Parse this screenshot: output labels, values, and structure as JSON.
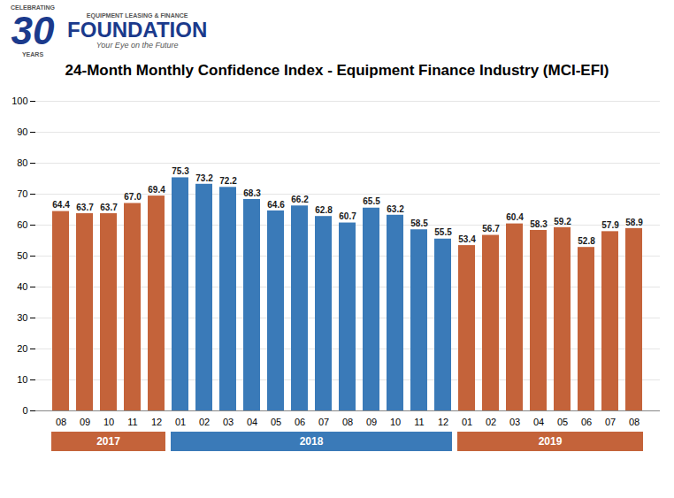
{
  "chart_data": {
    "type": "bar",
    "title": "24-Month Monthly Confidence Index - Equipment Finance Industry (MCI-EFI)",
    "categories": [
      "08",
      "09",
      "10",
      "11",
      "12",
      "01",
      "02",
      "03",
      "04",
      "05",
      "06",
      "07",
      "08",
      "09",
      "10",
      "11",
      "12",
      "01",
      "02",
      "03",
      "04",
      "05",
      "06",
      "07",
      "08"
    ],
    "values": [
      64.4,
      63.7,
      63.7,
      67.0,
      69.4,
      75.3,
      73.2,
      72.2,
      68.3,
      64.6,
      66.2,
      62.8,
      60.7,
      65.5,
      63.2,
      58.5,
      55.5,
      53.4,
      56.7,
      60.4,
      58.3,
      59.2,
      52.8,
      57.9,
      58.9
    ],
    "value_labels": [
      "64.4",
      "63.7",
      "63.7",
      "67.0",
      "69.4",
      "75.3",
      "73.2",
      "72.2",
      "68.3",
      "64.6",
      "66.2",
      "62.8",
      "60.7",
      "65.5",
      "63.2",
      "58.5",
      "55.5",
      "53.4",
      "56.7",
      "60.4",
      "58.3",
      "59.2",
      "52.8",
      "57.9",
      "58.9"
    ],
    "colors": [
      "#C4633A",
      "#C4633A",
      "#C4633A",
      "#C4633A",
      "#C4633A",
      "#3A7AB8",
      "#3A7AB8",
      "#3A7AB8",
      "#3A7AB8",
      "#3A7AB8",
      "#3A7AB8",
      "#3A7AB8",
      "#3A7AB8",
      "#3A7AB8",
      "#3A7AB8",
      "#3A7AB8",
      "#3A7AB8",
      "#C4633A",
      "#C4633A",
      "#C4633A",
      "#C4633A",
      "#C4633A",
      "#C4633A",
      "#C4633A",
      "#C4633A"
    ],
    "data_labels": true,
    "ylim": [
      0,
      100
    ],
    "yticks": [
      0,
      10,
      20,
      30,
      40,
      50,
      60,
      70,
      80,
      90,
      100
    ],
    "grid": true,
    "annotations": [
      {
        "text": "2017",
        "start": 0,
        "end": 4,
        "color": "#C4633A"
      },
      {
        "text": "2018",
        "start": 5,
        "end": 16,
        "color": "#3A7AB8"
      },
      {
        "text": "2019",
        "start": 17,
        "end": 24,
        "color": "#C4633A"
      },
      {
        "text": "CELEBRATING",
        "color": "#555555"
      },
      {
        "text": "30",
        "color": "#1B3A8C"
      },
      {
        "text": "YEARS",
        "color": "#555555"
      },
      {
        "text": "EQUIPMENT LEASING & FINANCE",
        "color": "#555555"
      },
      {
        "text": "FOUNDATION",
        "color": "#1B3A8C"
      },
      {
        "text": "Your Eye on the Future",
        "color": "#555555"
      }
    ]
  }
}
